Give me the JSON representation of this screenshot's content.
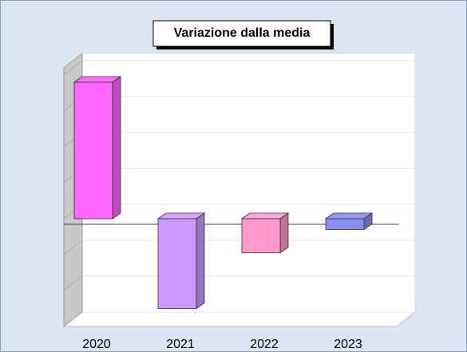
{
  "chart_data": {
    "type": "bar3d",
    "title": "Variazione dalla media",
    "categories": [
      "2020",
      "2021",
      "2022",
      "2023"
    ],
    "values": [
      3.8,
      -2.5,
      -0.95,
      -0.3
    ],
    "colors": [
      "#ff66ff",
      "#cc99ff",
      "#ff99cc",
      "#8a8ef0"
    ],
    "ylim": [
      -3,
      4
    ],
    "yticks": [
      -3,
      -2,
      -1,
      0,
      1,
      2,
      3,
      4
    ],
    "grid": true
  }
}
